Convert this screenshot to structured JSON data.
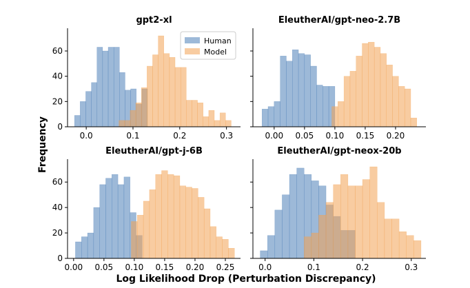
{
  "figure": {
    "xlabel": "Log Likelihood Drop (Perturbation Discrepancy)",
    "ylabel": "Frequency"
  },
  "colors": {
    "human": "#4c7fb8",
    "model": "#f2a353"
  },
  "chart_data": [
    {
      "type": "histogram",
      "title": "gpt2-xl",
      "xlim": [
        -0.04,
        0.33
      ],
      "ylim": [
        0,
        78
      ],
      "xticks": [
        0.0,
        0.1,
        0.2,
        0.3
      ],
      "xtick_labels": [
        "0.0",
        "0.1",
        "0.2",
        "0.3"
      ],
      "yticks": [
        0,
        20,
        40,
        60
      ],
      "ytick_labels": [
        "0",
        "20",
        "40",
        "60"
      ],
      "legend": {
        "position": "top-right",
        "entries": [
          "Human",
          "Model"
        ]
      },
      "series": [
        {
          "name": "Human",
          "edges": [
            -0.025,
            -0.013,
            -0.001,
            0.011,
            0.023,
            0.035,
            0.047,
            0.059,
            0.071,
            0.083,
            0.095,
            0.107,
            0.119,
            0.131
          ],
          "counts": [
            9,
            20,
            28,
            35,
            63,
            60,
            63,
            63,
            43,
            29,
            30,
            18,
            30
          ]
        },
        {
          "name": "Model",
          "edges": [
            0.07,
            0.082,
            0.094,
            0.106,
            0.118,
            0.13,
            0.142,
            0.154,
            0.166,
            0.178,
            0.19,
            0.202,
            0.214,
            0.226,
            0.238,
            0.25,
            0.262,
            0.274,
            0.286,
            0.298,
            0.31
          ],
          "counts": [
            5,
            5,
            13,
            19,
            31,
            48,
            57,
            72,
            58,
            55,
            47,
            47,
            21,
            21,
            19,
            8,
            13,
            5,
            11,
            5
          ]
        }
      ]
    },
    {
      "type": "histogram",
      "title": "EleutherAI/gpt-neo-2.7B",
      "xlim": [
        -0.035,
        0.25
      ],
      "ylim": [
        0,
        78
      ],
      "xticks": [
        0.0,
        0.05,
        0.1,
        0.15,
        0.2
      ],
      "xtick_labels": [
        "0.00",
        "0.05",
        "0.10",
        "0.15",
        "0.20"
      ],
      "yticks": [],
      "ytick_labels": [],
      "series": [
        {
          "name": "Human",
          "edges": [
            -0.02,
            -0.01,
            0.0,
            0.01,
            0.02,
            0.03,
            0.04,
            0.05,
            0.06,
            0.07,
            0.08,
            0.09,
            0.1
          ],
          "counts": [
            14,
            16,
            20,
            56,
            52,
            61,
            58,
            57,
            48,
            33,
            32,
            32
          ]
        },
        {
          "name": "Model",
          "edges": [
            0.095,
            0.105,
            0.115,
            0.125,
            0.135,
            0.145,
            0.155,
            0.165,
            0.175,
            0.185,
            0.195,
            0.205,
            0.215,
            0.225,
            0.235
          ],
          "counts": [
            16,
            20,
            40,
            44,
            56,
            66,
            67,
            63,
            58,
            49,
            40,
            32,
            30,
            7
          ]
        }
      ]
    },
    {
      "type": "histogram",
      "title": "EleutherAI/gpt-j-6B",
      "xlim": [
        -0.01,
        0.275
      ],
      "ylim": [
        0,
        78
      ],
      "xticks": [
        0.0,
        0.05,
        0.1,
        0.15,
        0.2,
        0.25
      ],
      "xtick_labels": [
        "0.00",
        "0.05",
        "0.10",
        "0.15",
        "0.20",
        "0.25"
      ],
      "yticks": [
        0,
        20,
        40,
        60
      ],
      "ytick_labels": [
        "0",
        "20",
        "40",
        "60"
      ],
      "series": [
        {
          "name": "Human",
          "edges": [
            0.003,
            0.013,
            0.023,
            0.033,
            0.043,
            0.053,
            0.063,
            0.073,
            0.083,
            0.093,
            0.103,
            0.113
          ],
          "counts": [
            13,
            17,
            20,
            40,
            58,
            63,
            66,
            58,
            64,
            36,
            18
          ]
        },
        {
          "name": "Model",
          "edges": [
            0.095,
            0.105,
            0.115,
            0.125,
            0.135,
            0.145,
            0.155,
            0.165,
            0.175,
            0.185,
            0.195,
            0.205,
            0.215,
            0.225,
            0.235,
            0.245,
            0.255,
            0.265
          ],
          "counts": [
            29,
            34,
            45,
            54,
            66,
            69,
            66,
            65,
            57,
            56,
            55,
            48,
            39,
            25,
            17,
            15,
            8
          ]
        }
      ]
    },
    {
      "type": "histogram",
      "title": "EleutherAI/gpt-neox-20b",
      "xlim": [
        -0.025,
        0.33
      ],
      "ylim": [
        0,
        78
      ],
      "xticks": [
        0.0,
        0.1,
        0.2,
        0.3
      ],
      "xtick_labels": [
        "0.0",
        "0.1",
        "0.2",
        "0.3"
      ],
      "yticks": [],
      "ytick_labels": [],
      "series": [
        {
          "name": "Human",
          "edges": [
            -0.01,
            0.005,
            0.02,
            0.035,
            0.05,
            0.065,
            0.08,
            0.095,
            0.11,
            0.125,
            0.14,
            0.155,
            0.17,
            0.185
          ],
          "counts": [
            6,
            18,
            38,
            50,
            66,
            71,
            66,
            61,
            57,
            42,
            33,
            22,
            22
          ]
        },
        {
          "name": "Model",
          "edges": [
            0.08,
            0.095,
            0.11,
            0.125,
            0.14,
            0.155,
            0.17,
            0.185,
            0.2,
            0.215,
            0.23,
            0.245,
            0.26,
            0.275,
            0.29,
            0.305,
            0.32
          ],
          "counts": [
            17,
            20,
            34,
            44,
            58,
            66,
            57,
            57,
            62,
            72,
            44,
            31,
            31,
            21,
            18,
            14,
            9
          ]
        }
      ]
    }
  ]
}
